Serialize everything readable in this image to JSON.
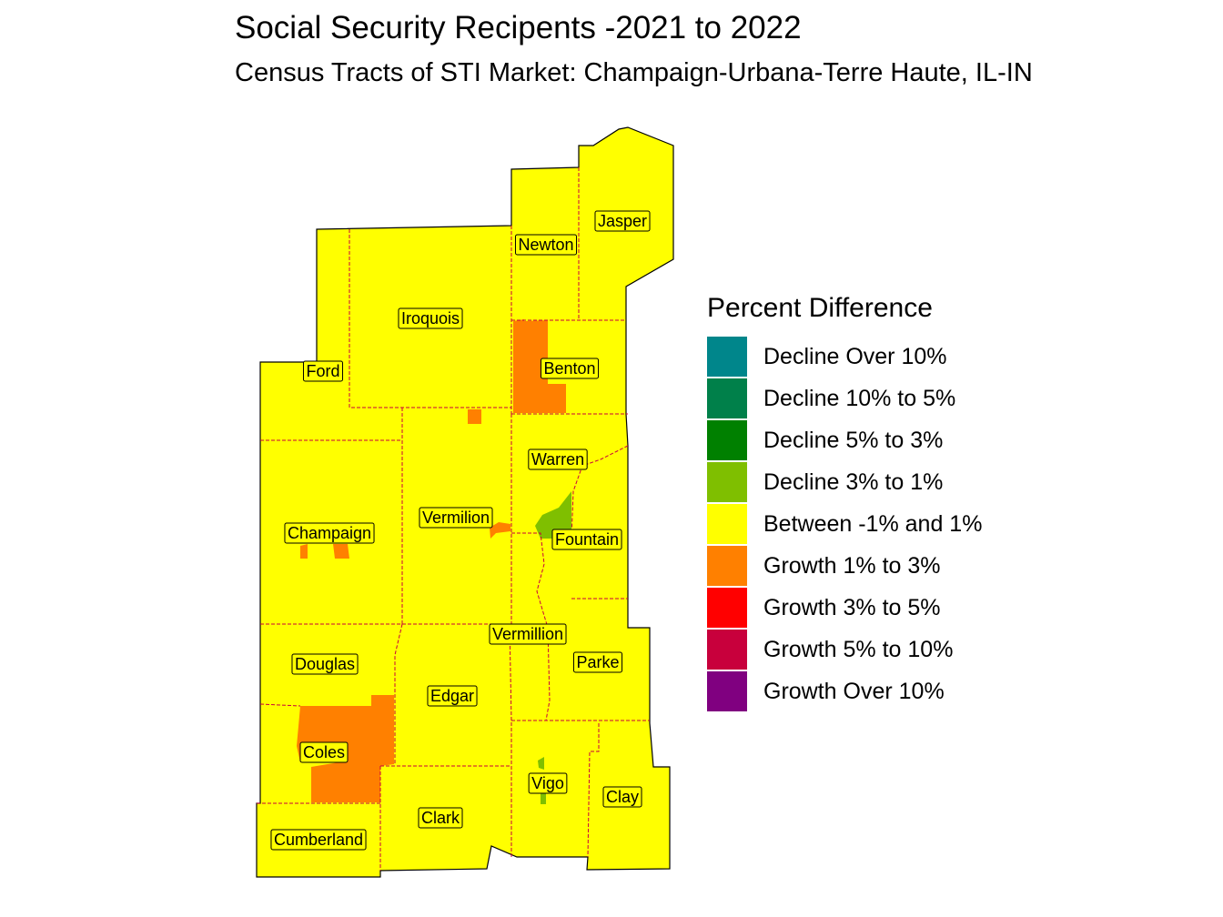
{
  "title": "Social Security Recipents -2021 to 2022",
  "subtitle": "Census Tracts of STI Market: Champaign-Urbana-Terre Haute, IL-IN",
  "legend": {
    "title": "Percent Difference",
    "items": [
      {
        "label": "Decline Over 10%",
        "color": "#00868B"
      },
      {
        "label": "Decline 10% to 5%",
        "color": "#00804A"
      },
      {
        "label": "Decline 5% to 3%",
        "color": "#008000"
      },
      {
        "label": "Decline 3% to 1%",
        "color": "#7FBF00"
      },
      {
        "label": "Between -1% and 1%",
        "color": "#FFFF00"
      },
      {
        "label": "Growth 1% to 3%",
        "color": "#FF8000"
      },
      {
        "label": "Growth 3% to 5%",
        "color": "#FF0000"
      },
      {
        "label": "Growth 5% to 10%",
        "color": "#C8003C"
      },
      {
        "label": "Growth Over 10%",
        "color": "#800080"
      }
    ]
  },
  "counties": [
    "Jasper",
    "Newton",
    "Iroquois",
    "Benton",
    "Ford",
    "Warren",
    "Vermilion",
    "Champaign",
    "Fountain",
    "Vermillion",
    "Parke",
    "Douglas",
    "Edgar",
    "Coles",
    "Vigo",
    "Clay",
    "Clark",
    "Cumberland"
  ],
  "colors": {
    "base_fill": "#FFFF00",
    "boundary": "#C8003C",
    "outline": "#000000"
  }
}
